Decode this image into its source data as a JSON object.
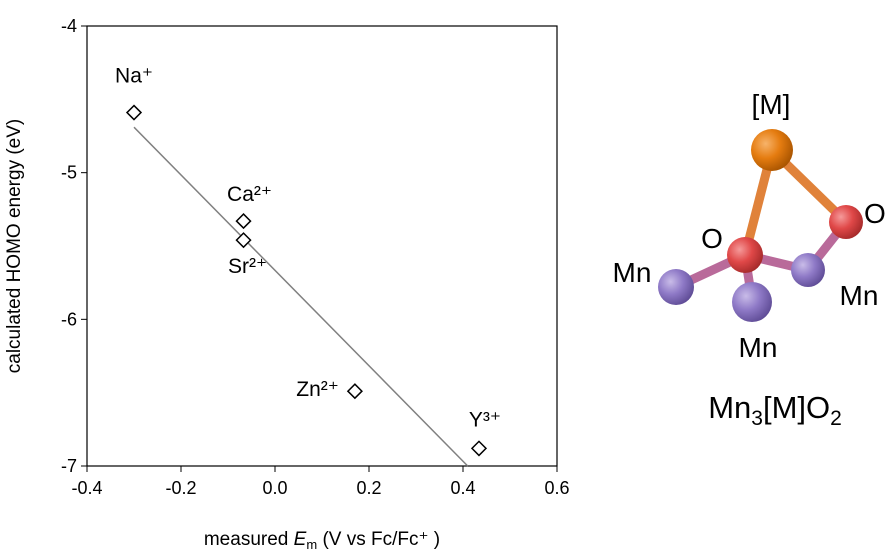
{
  "chart_data": {
    "type": "scatter",
    "x_label": [
      "measured ",
      "E",
      "m",
      " (V vs Fc/Fc⁺ )"
    ],
    "y_label": "calculated HOMO energy (eV)",
    "series": [
      {
        "labels": [
          "Na⁺",
          "Ca²⁺",
          "Sr²⁺",
          "Zn²⁺",
          "Y³⁺"
        ],
        "x": [
          -0.3,
          -0.067,
          -0.067,
          0.17,
          0.434
        ],
        "values": [
          -4.59,
          -5.33,
          -5.46,
          -6.49,
          -6.88
        ],
        "color": "#000000"
      }
    ],
    "trendline": {
      "x": [
        -0.3,
        0.41
      ],
      "values": [
        -4.69,
        -7.0
      ],
      "color": "#808080"
    },
    "xlim": [
      -0.4,
      0.6
    ],
    "ylim": [
      -7,
      -4
    ],
    "xticks": [
      -0.4,
      -0.2,
      {
        "value": 0,
        "label": "0.0"
      },
      0.2,
      0.4,
      0.6
    ],
    "yticks": [
      -4,
      -5,
      -6,
      -7
    ]
  },
  "diagram": {
    "metal_label": "[M]",
    "oxygen_labels": [
      "O",
      "O"
    ],
    "manganese_labels": [
      "Mn",
      "Mn",
      "Mn"
    ],
    "formula": [
      "Mn",
      "3",
      "[M]O",
      "2"
    ]
  }
}
